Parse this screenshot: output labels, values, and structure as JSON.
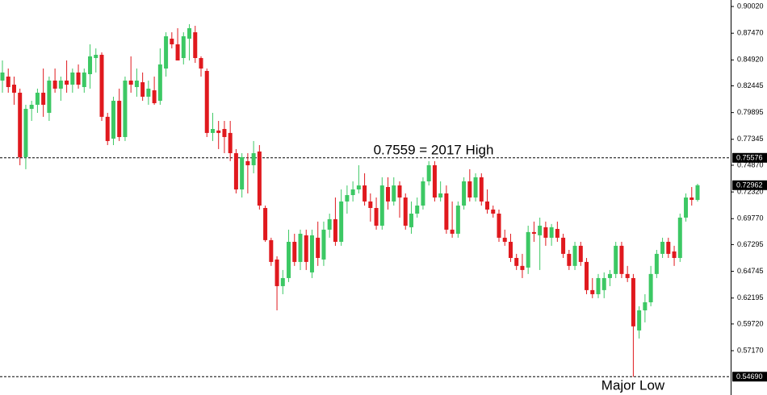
{
  "chart_data": {
    "type": "candlestick",
    "up_color": "#3cc864",
    "down_color": "#e0191e",
    "ylim": [
      0.5294,
      0.9064
    ],
    "yticks": [
      {
        "value": 0.9002,
        "label": "0.90020"
      },
      {
        "value": 0.8747,
        "label": "0.87470"
      },
      {
        "value": 0.8492,
        "label": "0.84920"
      },
      {
        "value": 0.82445,
        "label": "0.82445"
      },
      {
        "value": 0.79895,
        "label": "0.79895"
      },
      {
        "value": 0.77345,
        "label": "0.77345"
      },
      {
        "value": 0.7487,
        "label": "0.74870"
      },
      {
        "value": 0.7232,
        "label": "0.72320"
      },
      {
        "value": 0.6977,
        "label": "0.69770"
      },
      {
        "value": 0.67295,
        "label": "0.67295"
      },
      {
        "value": 0.64745,
        "label": "0.64745"
      },
      {
        "value": 0.62195,
        "label": "0.62195"
      },
      {
        "value": 0.5972,
        "label": "0.59720"
      },
      {
        "value": 0.5717,
        "label": "0.57170"
      }
    ],
    "price_lines": [
      {
        "value": 0.75576,
        "label": "0.75576"
      },
      {
        "value": 0.5469,
        "label": "0.54690"
      }
    ],
    "last_price": {
      "value": 0.72962,
      "label": "0.72962"
    },
    "annotations": [
      "0.7559 = 2017 High",
      "Major Low"
    ],
    "open": [
      0.8295,
      0.8333,
      0.8256,
      0.8179,
      0.7564,
      0.8025,
      0.8064,
      0.8179,
      0.7987,
      0.8295,
      0.8218,
      0.8295,
      0.8256,
      0.8372,
      0.8233,
      0.8356,
      0.851,
      0.8541,
      0.7949,
      0.7741,
      0.8102,
      0.7756,
      0.8295,
      0.8233,
      0.8279,
      0.8141,
      0.8202,
      0.8102,
      0.841,
      0.8695,
      0.8641,
      0.851,
      0.8695,
      0.8756,
      0.851,
      0.8387,
      0.7795,
      0.7818,
      0.7833,
      0.7795,
      0.7602,
      0.7256,
      0.7526,
      0.7487,
      0.7618,
      0.7079,
      0.6772,
      0.6587,
      0.6333,
      0.641,
      0.6756,
      0.6564,
      0.6818,
      0.6464,
      0.6795,
      0.6587,
      0.6872,
      0.6972,
      0.6756,
      0.7141,
      0.7202,
      0.7256,
      0.7294,
      0.7141,
      0.7079,
      0.691,
      0.7279,
      0.7141,
      0.7294,
      0.7179,
      0.6895,
      0.7025,
      0.7102,
      0.7333,
      0.7487,
      0.7179,
      0.7218,
      0.6872,
      0.6833,
      0.7102,
      0.7333,
      0.7179,
      0.7372,
      0.7141,
      0.7064,
      0.7025,
      0.6795,
      0.6756,
      0.6602,
      0.6526,
      0.651,
      0.6849,
      0.6818,
      0.6895,
      0.6795,
      0.6879,
      0.6795,
      0.6641,
      0.6526,
      0.6718,
      0.6564,
      0.6295,
      0.6256,
      0.6295,
      0.641,
      0.6449,
      0.6718,
      0.6449,
      0.641,
      0.591,
      0.6102,
      0.6179,
      0.6449,
      0.6641,
      0.6756,
      0.6664,
      0.6602,
      0.6987,
      0.7179,
      0.7156
    ],
    "high": [
      0.8487,
      0.841,
      0.8333,
      0.8218,
      0.8064,
      0.8102,
      0.8218,
      0.841,
      0.8333,
      0.841,
      0.8333,
      0.8487,
      0.841,
      0.8449,
      0.841,
      0.8641,
      0.8602,
      0.8564,
      0.7987,
      0.8141,
      0.8218,
      0.8333,
      0.8526,
      0.841,
      0.8372,
      0.8295,
      0.8333,
      0.8602,
      0.8756,
      0.8756,
      0.8795,
      0.8756,
      0.8833,
      0.8818,
      0.8526,
      0.841,
      0.7987,
      0.791,
      0.791,
      0.791,
      0.7641,
      0.7602,
      0.7602,
      0.7718,
      0.7679,
      0.7102,
      0.6795,
      0.6618,
      0.6487,
      0.6872,
      0.6833,
      0.6872,
      0.6872,
      0.6872,
      0.6949,
      0.6949,
      0.7025,
      0.7179,
      0.7256,
      0.7294,
      0.7333,
      0.7487,
      0.741,
      0.7218,
      0.7179,
      0.7372,
      0.7372,
      0.7372,
      0.7333,
      0.7218,
      0.7141,
      0.7179,
      0.7372,
      0.7526,
      0.7526,
      0.7333,
      0.7294,
      0.7141,
      0.7141,
      0.7372,
      0.7449,
      0.741,
      0.741,
      0.7256,
      0.7102,
      0.7064,
      0.6872,
      0.6833,
      0.6641,
      0.6641,
      0.691,
      0.6949,
      0.6987,
      0.6949,
      0.6926,
      0.6949,
      0.6833,
      0.6679,
      0.6756,
      0.6756,
      0.6602,
      0.641,
      0.6449,
      0.6464,
      0.6487,
      0.6756,
      0.6756,
      0.6526,
      0.6449,
      0.6141,
      0.6256,
      0.6526,
      0.6679,
      0.6795,
      0.6795,
      0.6718,
      0.7025,
      0.7218,
      0.7279,
      0.731
    ],
    "low": [
      0.8179,
      0.8179,
      0.8064,
      0.7487,
      0.7449,
      0.791,
      0.7987,
      0.7949,
      0.791,
      0.8179,
      0.8102,
      0.8179,
      0.8179,
      0.8218,
      0.8179,
      0.8218,
      0.8372,
      0.791,
      0.7679,
      0.7679,
      0.7718,
      0.7718,
      0.8179,
      0.8141,
      0.8102,
      0.8064,
      0.8064,
      0.8064,
      0.8333,
      0.8602,
      0.8487,
      0.8449,
      0.8487,
      0.8464,
      0.8333,
      0.7756,
      0.7718,
      0.7641,
      0.7602,
      0.7526,
      0.7218,
      0.7179,
      0.7218,
      0.741,
      0.7064,
      0.6756,
      0.6526,
      0.6102,
      0.6256,
      0.6372,
      0.6526,
      0.6487,
      0.6487,
      0.641,
      0.6526,
      0.6526,
      0.6795,
      0.6718,
      0.6718,
      0.7025,
      0.7141,
      0.7218,
      0.7102,
      0.6949,
      0.6872,
      0.6872,
      0.7064,
      0.7102,
      0.6987,
      0.6872,
      0.6833,
      0.6987,
      0.7064,
      0.7294,
      0.7141,
      0.7141,
      0.6833,
      0.6795,
      0.6795,
      0.7064,
      0.7141,
      0.7141,
      0.7102,
      0.7025,
      0.6987,
      0.6756,
      0.6718,
      0.6564,
      0.6487,
      0.641,
      0.6449,
      0.6756,
      0.6487,
      0.6718,
      0.6718,
      0.6756,
      0.6602,
      0.6487,
      0.6487,
      0.6526,
      0.6256,
      0.6218,
      0.6218,
      0.6218,
      0.6333,
      0.641,
      0.641,
      0.6372,
      0.5469,
      0.5833,
      0.5987,
      0.6141,
      0.641,
      0.6602,
      0.6602,
      0.6526,
      0.6564,
      0.6949,
      0.7102,
      0.7141
    ],
    "close": [
      0.8372,
      0.8233,
      0.8179,
      0.7564,
      0.8025,
      0.8064,
      0.8179,
      0.8064,
      0.8295,
      0.8218,
      0.8295,
      0.8256,
      0.8372,
      0.8256,
      0.8372,
      0.8526,
      0.8541,
      0.7949,
      0.7718,
      0.8102,
      0.7756,
      0.8295,
      0.8256,
      0.8295,
      0.8141,
      0.8218,
      0.8079,
      0.8449,
      0.8718,
      0.8641,
      0.8487,
      0.8718,
      0.8795,
      0.851,
      0.841,
      0.7795,
      0.7833,
      0.7795,
      0.7756,
      0.7602,
      0.7256,
      0.7564,
      0.7487,
      0.7602,
      0.7102,
      0.6772,
      0.6564,
      0.6333,
      0.641,
      0.6756,
      0.6564,
      0.6833,
      0.6564,
      0.6818,
      0.6602,
      0.6872,
      0.6972,
      0.6756,
      0.7141,
      0.7202,
      0.7256,
      0.7294,
      0.7141,
      0.7079,
      0.691,
      0.7294,
      0.7141,
      0.7294,
      0.7179,
      0.691,
      0.7025,
      0.7102,
      0.7333,
      0.7487,
      0.7179,
      0.7218,
      0.6872,
      0.6833,
      0.7102,
      0.7333,
      0.7179,
      0.7372,
      0.7141,
      0.7064,
      0.7025,
      0.6795,
      0.6756,
      0.6602,
      0.6526,
      0.6487,
      0.6849,
      0.6833,
      0.691,
      0.6795,
      0.6895,
      0.6795,
      0.6641,
      0.6526,
      0.6718,
      0.6564,
      0.6295,
      0.6256,
      0.641,
      0.641,
      0.6449,
      0.6718,
      0.6449,
      0.641,
      0.5949,
      0.6102,
      0.6179,
      0.6449,
      0.6641,
      0.6756,
      0.6641,
      0.6602,
      0.6987,
      0.7179,
      0.7156,
      0.72962
    ]
  }
}
